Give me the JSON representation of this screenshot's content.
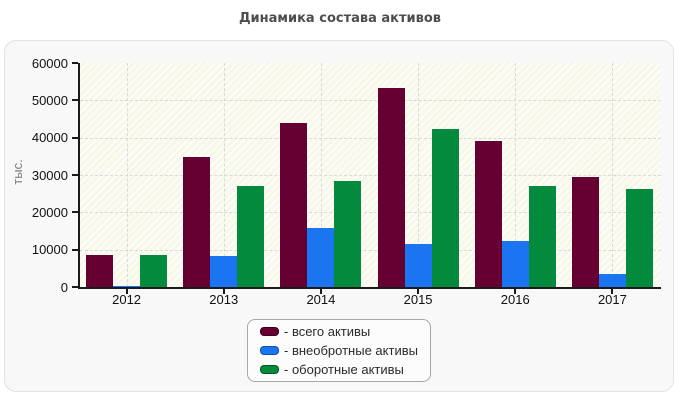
{
  "title": "Динамика состава активов",
  "chart_data": {
    "type": "bar",
    "title": "Динамика состава активов",
    "ylabel": "тыс.",
    "categories": [
      "2012",
      "2013",
      "2014",
      "2015",
      "2016",
      "2017"
    ],
    "series": [
      {
        "name": "- всего активы",
        "color": "#660033",
        "border": "#3d001f",
        "values": [
          8500,
          34900,
          43800,
          53200,
          39100,
          29500
        ]
      },
      {
        "name": "- внеобротные активы",
        "color": "#1b75f0",
        "border": "#0f4fae",
        "values": [
          400,
          8200,
          15700,
          11400,
          12400,
          3500
        ]
      },
      {
        "name": "- оборотные активы",
        "color": "#048a3c",
        "border": "#035a27",
        "values": [
          8500,
          27100,
          28400,
          42300,
          27000,
          26200
        ]
      }
    ],
    "ylim": [
      0,
      60000
    ],
    "yticks": [
      0,
      10000,
      20000,
      30000,
      40000,
      50000,
      60000
    ],
    "grid": true,
    "legend_position": "bottom-center"
  }
}
